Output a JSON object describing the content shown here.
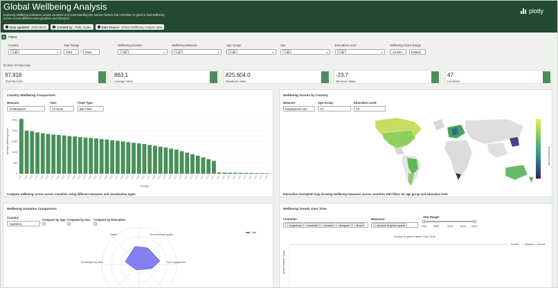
{
  "header": {
    "title": "Global Wellbeing Analysis",
    "subtitle": "Exploring wellbeing indicators across countries and understanding the various factors that contribute to good or bad wellbeing scores across different demographics and domains.",
    "badges": [
      {
        "key": "Data Updated:",
        "value": "2025-09-27"
      },
      {
        "key": "Created by:",
        "value": "Plotly Studio"
      },
      {
        "key": "Data Source:",
        "value": "Global Wellbeing Analysis data"
      }
    ],
    "logo": "plotly"
  },
  "filters": {
    "heading": "Filters",
    "country": {
      "label": "Country",
      "value": "All"
    },
    "year_range": {
      "label": "Year Range",
      "from": "2004",
      "dash": "-",
      "to": "2024"
    },
    "domain": {
      "label": "Wellbeing Domain",
      "value": "All"
    },
    "measure": {
      "label": "Wellbeing Measure",
      "value": "All"
    },
    "age_group": {
      "label": "Age Group",
      "value": "All"
    },
    "sex": {
      "label": "Sex",
      "value": "All"
    },
    "education": {
      "label": "Education Level",
      "value": "All"
    },
    "score_range": {
      "label": "Wellbeing Score Range",
      "from": "-23.681...",
      "to": "825604"
    }
  },
  "rows_info": "97,916 / 97,916 rows",
  "kpis": [
    {
      "value": "97,916",
      "label": "Total Records"
    },
    {
      "value": "863.1",
      "label": "Average Value"
    },
    {
      "value": "825,604.0",
      "label": "Maximum Value"
    },
    {
      "value": "-23.7",
      "label": "Minimum Value"
    },
    {
      "value": "47",
      "label": "Countries"
    }
  ],
  "panel_bar": {
    "title": "Country Wellbeing Comparison",
    "measure_label": "Measure:",
    "measure_value": "All Measures",
    "year_label": "Year:",
    "year_value": "All Years",
    "type_label": "Chart Type:",
    "type_value": "Bar Chart",
    "caption": "Compare wellbeing scores across countries using different measures and visualization types"
  },
  "panel_map": {
    "title": "Wellbeing Scores by Country",
    "measure_label": "Measure:",
    "measure_value": "Employment rate",
    "age_label": "Age Group:",
    "age_value": "All",
    "edu_label": "Education Level:",
    "edu_value": "All",
    "colorbar_title": "Employment rate",
    "caption": "Interactive choropleth map showing wellbeing measures across countries with filters for age group and education level"
  },
  "panel_domains": {
    "title": "Wellbeing Domains Comparison",
    "country_label": "Country:",
    "country_value": "Argentina",
    "age_label": "Compare by Age:",
    "sex_label": "Compare by Sex:",
    "edu_label": "Compare by Education:",
    "legend": "Total",
    "axes": [
      "Health",
      "Environmental quality",
      "Civic engagement",
      "Knowledge and skills"
    ]
  },
  "panel_trends": {
    "title": "Wellbeing Trends Over Time",
    "countries_label": "Countries:",
    "countries": [
      "Argentina",
      "Australia",
      "Austria",
      "Belgium",
      "Brazil"
    ],
    "measures_label": "Measures:",
    "measure_value": "Access to green space",
    "year_label": "Year Range:",
    "year_ticks": [
      "2004",
      "2009",
      "2014",
      "2019",
      "2024"
    ],
    "chart_title": "Access to green space Over Time",
    "ylabel": "Access to green space",
    "legend_title": "Country",
    "legend_items": [
      "Belgium",
      "Austria"
    ]
  },
  "chart_data": {
    "type": "bar",
    "title": "",
    "xlabel": "Country",
    "ylabel": "Average Wellbeing Score",
    "y_ticks": [
      0,
      500,
      1000,
      1500,
      2000,
      2500
    ],
    "ylim": [
      0,
      2700
    ],
    "color": "#4a8f5b",
    "values": [
      2550,
      2000,
      1980,
      1920,
      1880,
      1850,
      1820,
      1800,
      1780,
      1750,
      1730,
      1700,
      1680,
      1660,
      1640,
      1610,
      1590,
      1560,
      1530,
      1500,
      1470,
      1440,
      1410,
      1380,
      1340,
      1300,
      1260,
      1220,
      1170,
      1120,
      1050,
      980,
      910,
      840,
      760,
      680,
      600,
      60,
      55,
      50,
      48,
      45,
      42,
      40,
      35,
      30,
      25
    ]
  }
}
